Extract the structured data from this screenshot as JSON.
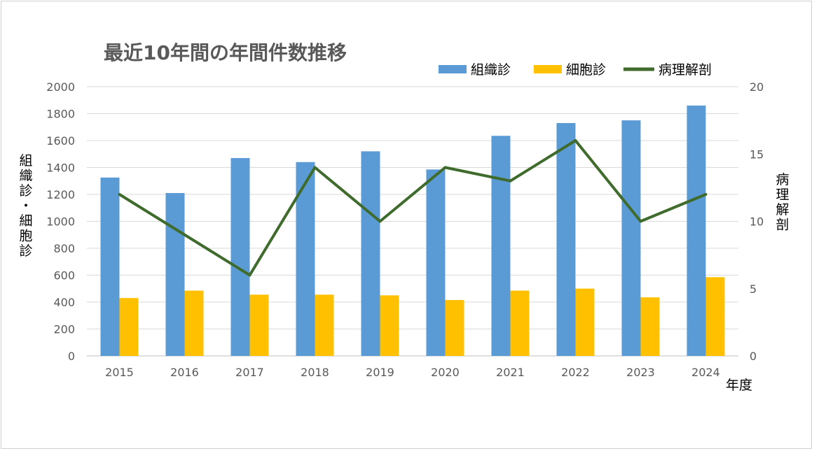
{
  "chart_data": {
    "type": "bar",
    "title": "最近10年間の年間件数推移",
    "xlabel": "年度",
    "ylabel": "組織診・細胞診",
    "y2label": "病理解剖",
    "categories": [
      "2015",
      "2016",
      "2017",
      "2018",
      "2019",
      "2020",
      "2021",
      "2022",
      "2023",
      "2024"
    ],
    "ylim": [
      0,
      2000
    ],
    "yticks": [
      0,
      200,
      400,
      600,
      800,
      1000,
      1200,
      1400,
      1600,
      1800,
      2000
    ],
    "y2lim": [
      0,
      20
    ],
    "y2ticks": [
      0,
      5,
      10,
      15,
      20
    ],
    "grid": true,
    "legend_position": "top-right",
    "series": [
      {
        "name": "組織診",
        "type": "bar",
        "axis": "left",
        "color": "#5B9BD5",
        "values": [
          1325,
          1210,
          1470,
          1440,
          1520,
          1385,
          1635,
          1730,
          1750,
          1860
        ]
      },
      {
        "name": "細胞診",
        "type": "bar",
        "axis": "left",
        "color": "#FFC000",
        "values": [
          430,
          485,
          455,
          455,
          450,
          415,
          485,
          500,
          435,
          585
        ]
      },
      {
        "name": "病理解剖",
        "type": "line",
        "axis": "right",
        "color": "#3F6B2D",
        "values": [
          12,
          9,
          6,
          14,
          10,
          14,
          13,
          16,
          10,
          12
        ]
      }
    ]
  }
}
